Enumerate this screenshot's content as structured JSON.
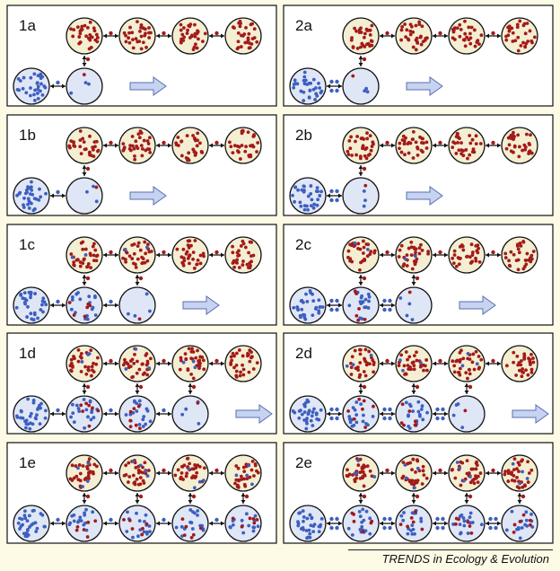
{
  "panels": [
    {
      "label": "1a",
      "blue_row": 2,
      "dots_between_blue": 1,
      "cols_connected": [
        0
      ],
      "stage": 0
    },
    {
      "label": "2a",
      "blue_row": 2,
      "dots_between_blue": 4,
      "cols_connected": [
        0
      ],
      "stage": 0
    },
    {
      "label": "1b",
      "blue_row": 2,
      "dots_between_blue": 1,
      "cols_connected": [
        0
      ],
      "stage": 1
    },
    {
      "label": "2b",
      "blue_row": 2,
      "dots_between_blue": 4,
      "cols_connected": [
        0
      ],
      "stage": 1
    },
    {
      "label": "1c",
      "blue_row": 3,
      "dots_between_blue": 1,
      "cols_connected": [
        0,
        1
      ],
      "stage": 2
    },
    {
      "label": "2c",
      "blue_row": 3,
      "dots_between_blue": 4,
      "cols_connected": [
        0,
        1
      ],
      "stage": 2
    },
    {
      "label": "1d",
      "blue_row": 4,
      "dots_between_blue": 1,
      "cols_connected": [
        0,
        1,
        2
      ],
      "stage": 3
    },
    {
      "label": "2d",
      "blue_row": 4,
      "dots_between_blue": 4,
      "cols_connected": [
        0,
        1,
        2
      ],
      "stage": 3
    },
    {
      "label": "1e",
      "blue_row": 5,
      "dots_between_blue": 1,
      "cols_connected": [
        0,
        1,
        2,
        3
      ],
      "stage": 4
    },
    {
      "label": "2e",
      "blue_row": 5,
      "dots_between_blue": 4,
      "cols_connected": [
        0,
        1,
        2,
        3
      ],
      "stage": 4
    }
  ],
  "colors": {
    "red_dot": "#a31a1a",
    "blue_dot": "#3c5fc0",
    "red_circle_fill": "#f4eed2",
    "blue_circle_fill": "#dfe6f6",
    "outline": "#111111",
    "arrow_fill": "#c6d3f1",
    "arrow_stroke": "#5a6fb0",
    "panel_bg": "#ffffff",
    "page_bg": "#fdfbe6"
  },
  "credit": "TRENDS in Ecology & Evolution"
}
